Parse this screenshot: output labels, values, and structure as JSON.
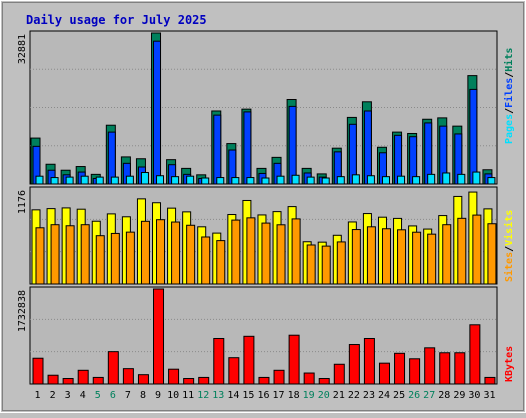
{
  "title": "Daily usage for July 2025",
  "colors": {
    "background": "#c0c0c0",
    "plot_bg": "#b0b0b0",
    "hits": "#00805c",
    "files": "#0040ff",
    "pages": "#00e0ff",
    "visits": "#ffff00",
    "sites": "#ff9900",
    "kbytes": "#ff0000",
    "title": "#0000c0",
    "weekend_label": "#00805c"
  },
  "chart_data": [
    {
      "type": "bar",
      "name_panel": "hits-files-pages",
      "y_max_label": "32881",
      "ymax": 32881,
      "legend": [
        "Pages",
        "/",
        "Files",
        "/",
        "Hits"
      ],
      "categories": [
        "1",
        "2",
        "3",
        "4",
        "5",
        "6",
        "7",
        "8",
        "9",
        "10",
        "11",
        "12",
        "13",
        "14",
        "15",
        "16",
        "17",
        "18",
        "19",
        "20",
        "21",
        "22",
        "23",
        "24",
        "25",
        "26",
        "27",
        "28",
        "29",
        "30",
        "31"
      ],
      "series": [
        {
          "name": "Hits",
          "values": [
            10000,
            4300,
            3000,
            3800,
            2100,
            12800,
            5900,
            5500,
            33000,
            5300,
            3400,
            2000,
            15900,
            8800,
            16300,
            3400,
            5800,
            18400,
            3400,
            2200,
            7800,
            14500,
            17900,
            8000,
            11300,
            11000,
            14100,
            14400,
            12600,
            23600,
            3100
          ]
        },
        {
          "name": "Files",
          "values": [
            8200,
            3000,
            2000,
            2600,
            1200,
            11300,
            4500,
            3700,
            31100,
            4200,
            2100,
            1200,
            15000,
            7400,
            15700,
            2300,
            4500,
            16900,
            2400,
            1500,
            7000,
            13000,
            15900,
            6800,
            10600,
            10300,
            13300,
            12600,
            10900,
            20600,
            2200
          ]
        },
        {
          "name": "Pages",
          "values": [
            1700,
            1400,
            1500,
            1700,
            1500,
            1500,
            1700,
            2500,
            1800,
            1600,
            1700,
            1200,
            1400,
            1400,
            1400,
            1300,
            1700,
            1900,
            1500,
            1100,
            1600,
            2000,
            1800,
            1600,
            1700,
            1600,
            2100,
            2400,
            2100,
            2600,
            1400
          ]
        }
      ]
    },
    {
      "type": "bar",
      "name_panel": "visits-sites",
      "y_max_label": "1176",
      "ymax": 1176,
      "legend": [
        "Sites",
        "/",
        "Visits"
      ],
      "categories": [
        "1",
        "2",
        "3",
        "4",
        "5",
        "6",
        "7",
        "8",
        "9",
        "10",
        "11",
        "12",
        "13",
        "14",
        "15",
        "16",
        "17",
        "18",
        "19",
        "20",
        "21",
        "22",
        "23",
        "24",
        "25",
        "26",
        "27",
        "28",
        "29",
        "30",
        "31"
      ],
      "series": [
        {
          "name": "Visits",
          "values": [
            918,
            933,
            942,
            926,
            777,
            868,
            832,
            1054,
            1006,
            939,
            893,
            708,
            630,
            860,
            1034,
            855,
            896,
            958,
            523,
            518,
            603,
            768,
            872,
            827,
            812,
            719,
            680,
            847,
            1084,
            1138,
            930
          ]
        },
        {
          "name": "Sites",
          "values": [
            696,
            734,
            721,
            734,
            598,
            626,
            642,
            776,
            796,
            767,
            727,
            582,
            537,
            791,
            819,
            754,
            733,
            806,
            483,
            469,
            521,
            674,
            708,
            684,
            671,
            641,
            617,
            734,
            813,
            853,
            746
          ]
        }
      ]
    },
    {
      "type": "bar",
      "name_panel": "kbytes",
      "y_max_label": "1732838",
      "ymax": 1732838,
      "legend": [
        "KBytes"
      ],
      "categories": [
        "1",
        "2",
        "3",
        "4",
        "5",
        "6",
        "7",
        "8",
        "9",
        "10",
        "11",
        "12",
        "13",
        "14",
        "15",
        "16",
        "17",
        "18",
        "19",
        "20",
        "21",
        "22",
        "23",
        "24",
        "25",
        "26",
        "27",
        "28",
        "29",
        "30",
        "31"
      ],
      "series": [
        {
          "name": "KBytes",
          "values": [
            470000,
            160000,
            100000,
            250000,
            120000,
            590000,
            280000,
            170000,
            1732838,
            270000,
            100000,
            120000,
            830000,
            480000,
            870000,
            120000,
            250000,
            890000,
            200000,
            100000,
            360000,
            720000,
            830000,
            380000,
            560000,
            460000,
            660000,
            570000,
            570000,
            1080000,
            120000
          ]
        }
      ]
    }
  ],
  "x_labels": [
    "1",
    "2",
    "3",
    "4",
    "5",
    "6",
    "7",
    "8",
    "9",
    "10",
    "11",
    "12",
    "13",
    "14",
    "15",
    "16",
    "17",
    "18",
    "19",
    "20",
    "21",
    "22",
    "23",
    "24",
    "25",
    "26",
    "27",
    "28",
    "29",
    "30",
    "31"
  ],
  "weekend_days": [
    "5",
    "6",
    "12",
    "13",
    "19",
    "20",
    "26",
    "27"
  ]
}
